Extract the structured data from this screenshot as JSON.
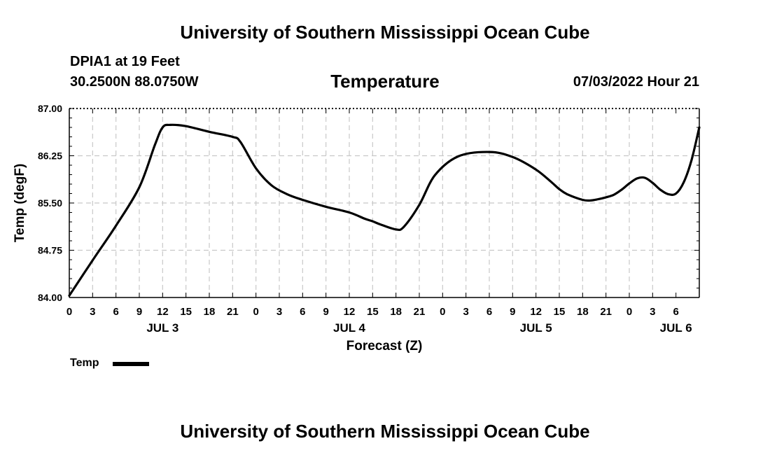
{
  "header": {
    "org_title": "University of Southern Mississippi Ocean Cube",
    "station": "DPIA1 at 19 Feet",
    "coords": "30.2500N  88.0750W",
    "chart_title": "Temperature",
    "datetime": "07/03/2022 Hour 21"
  },
  "footer": {
    "org_title": "University of Southern Mississippi Ocean Cube"
  },
  "legend": {
    "label": "Temp",
    "color": "#000000"
  },
  "chart_data": {
    "type": "line",
    "title": "Temperature",
    "xlabel": "Forecast (Z)",
    "ylabel": "Temp (degF)",
    "xlim": [
      0,
      81
    ],
    "ylim": [
      84.0,
      87.0
    ],
    "y_ticks": [
      "84.00",
      "84.75",
      "85.50",
      "86.25",
      "87.00"
    ],
    "x_ticks": [
      "0",
      "3",
      "6",
      "9",
      "12",
      "15",
      "18",
      "21",
      "0",
      "3",
      "6",
      "9",
      "12",
      "15",
      "18",
      "21",
      "0",
      "3",
      "6",
      "9",
      "12",
      "15",
      "18",
      "21",
      "0",
      "3",
      "6"
    ],
    "day_labels": [
      {
        "label": "JUL 3",
        "hour": 12
      },
      {
        "label": "JUL 4",
        "hour": 36
      },
      {
        "label": "JUL 5",
        "hour": 60
      },
      {
        "label": "JUL 6",
        "hour": 78
      }
    ],
    "grid": true,
    "series": [
      {
        "name": "Temp",
        "color": "#000000",
        "x": [
          0,
          3,
          6,
          9,
          11,
          12,
          13,
          15,
          18,
          21,
          22,
          24,
          26,
          28,
          30,
          33,
          36,
          38,
          39,
          40,
          42,
          43,
          45,
          47,
          50,
          54,
          57,
          60,
          62,
          63,
          64,
          66,
          67,
          68,
          69,
          70,
          71,
          72,
          73,
          74,
          75,
          76,
          77,
          78,
          79,
          80,
          81
        ],
        "values": [
          84.03,
          84.59,
          85.14,
          85.75,
          86.42,
          86.7,
          86.74,
          86.72,
          86.63,
          86.55,
          86.47,
          86.05,
          85.78,
          85.64,
          85.55,
          85.44,
          85.35,
          85.25,
          85.21,
          85.16,
          85.08,
          85.12,
          85.47,
          85.94,
          86.24,
          86.31,
          86.23,
          86.03,
          85.83,
          85.72,
          85.64,
          85.55,
          85.54,
          85.56,
          85.59,
          85.63,
          85.71,
          85.81,
          85.89,
          85.9,
          85.82,
          85.71,
          85.64,
          85.65,
          85.83,
          86.18,
          86.7
        ]
      }
    ]
  }
}
